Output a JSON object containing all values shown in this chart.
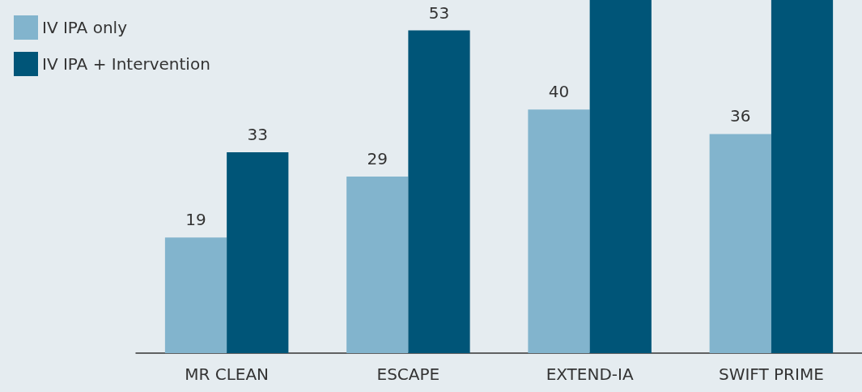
{
  "chart_data": {
    "type": "bar",
    "categories": [
      "MR CLEAN",
      "ESCAPE",
      "EXTEND-IA",
      "SWIFT PRIME"
    ],
    "series": [
      {
        "name": "IV IPA only",
        "color": "#82b4cd",
        "values": [
          19,
          29,
          40,
          36
        ],
        "value_labels": [
          "19",
          "29",
          "40",
          "36"
        ]
      },
      {
        "name": "IV IPA + Intervention",
        "color": "#005578",
        "values": [
          33,
          53,
          58,
          58
        ],
        "value_labels": [
          "33",
          "53",
          null,
          null
        ]
      }
    ],
    "ylim": [
      0,
      58
    ],
    "tick_labels": "x",
    "grid": false,
    "legend": "top left"
  }
}
